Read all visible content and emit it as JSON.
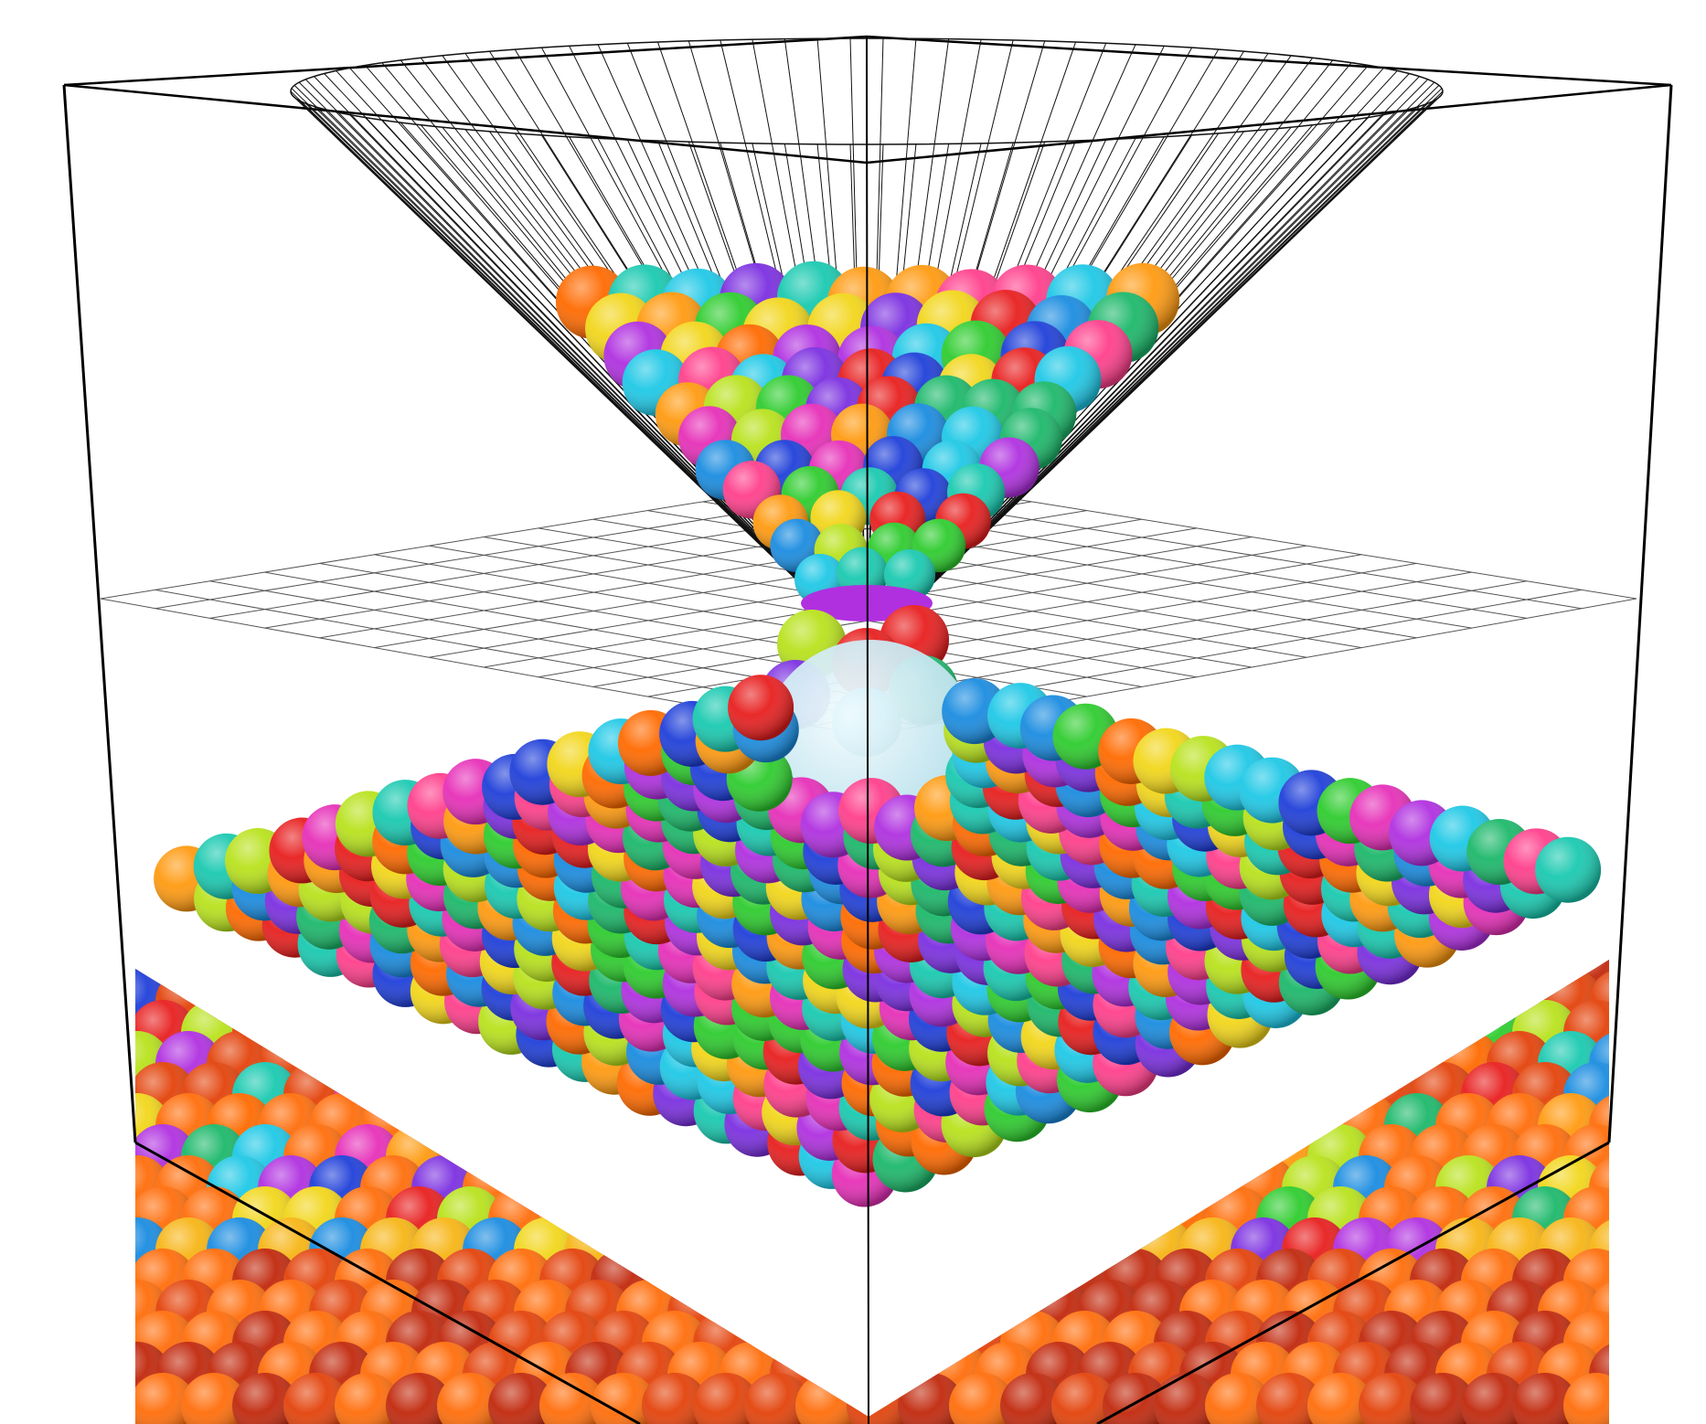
{
  "scene": {
    "subject": "granular-flow-simulation",
    "background_color": "#ffffff",
    "frame_color": "#000000",
    "grid_color": "#555555",
    "funnel_line_color": "#111111",
    "obstacle_color": "#cfeef5",
    "nozzle_color": "#b030e0",
    "palette": [
      "#e81e1e",
      "#ff6a00",
      "#ff9a10",
      "#f2d61a",
      "#b8e21c",
      "#2ecc2e",
      "#1cb86a",
      "#19c9b0",
      "#1ec8e6",
      "#1a8ce0",
      "#1f3fd9",
      "#7b2fe0",
      "#b030e0",
      "#e62fb8",
      "#ff3f8c"
    ],
    "layer_palette": [
      "#c1280c",
      "#e3420a",
      "#ff6d0a",
      "#f7b515",
      "#d8d21a"
    ]
  }
}
